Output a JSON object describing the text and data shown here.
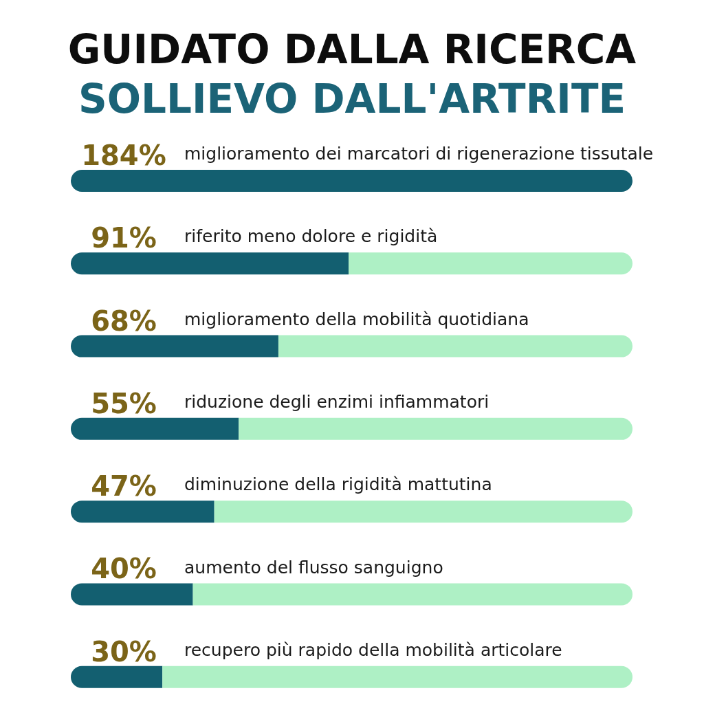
{
  "chart_data": {
    "type": "bar",
    "orientation": "horizontal",
    "stacked": true,
    "title": "GUIDATO DALLA RICERCA",
    "subtitle": "SOLLIEVO DALL'ARTRITE",
    "categories": [
      "miglioramento dei marcatori di rigenerazione tissutale",
      "riferito meno dolore e rigidità",
      "miglioramento della mobilità quotidiana",
      "riduzione degli enzimi infiammatori",
      "diminuzione della rigidità mattutina",
      "aumento del flusso sanguigno",
      "recupero più rapido della mobilità articolare"
    ],
    "series": [
      {
        "color": "#135f70",
        "values": [
          184,
          91,
          68,
          55,
          47,
          40,
          30
        ],
        "value_labels": [
          "184%",
          "91%",
          "68%",
          "55%",
          "47%",
          "40%",
          "30%"
        ]
      },
      {
        "color": "#aef0c5",
        "values": [
          0,
          93,
          116,
          129,
          137,
          144,
          154
        ]
      }
    ],
    "xlim": [
      0,
      184
    ],
    "tick_labels": "y"
  }
}
